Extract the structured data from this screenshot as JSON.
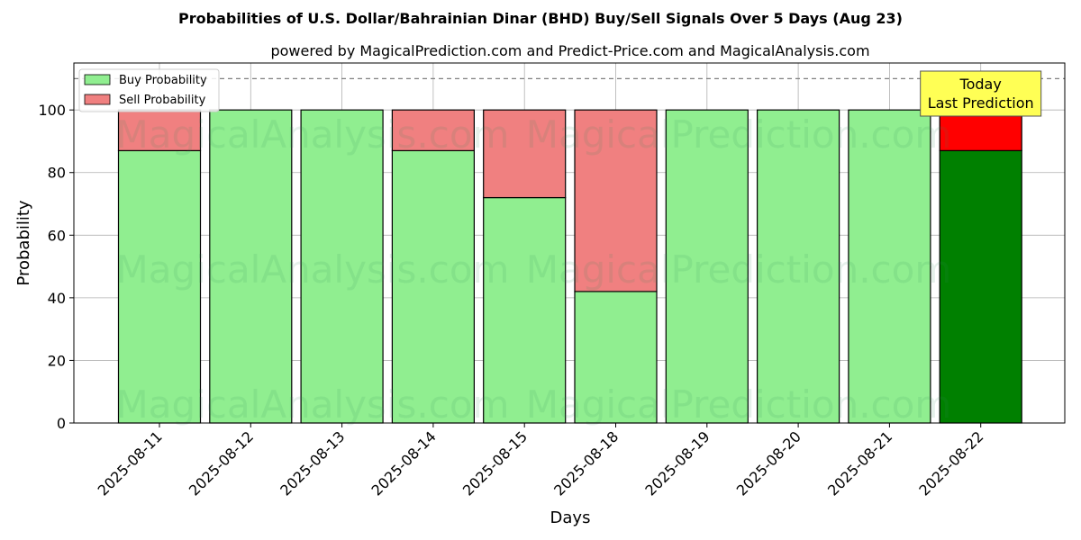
{
  "chart_data": {
    "type": "bar",
    "stacked": true,
    "title": "Probabilities of U.S. Dollar/Bahrainian Dinar (BHD) Buy/Sell Signals Over 5 Days (Aug 23)",
    "subtitle": "powered by MagicalPrediction.com and Predict-Price.com and MagicalAnalysis.com",
    "xlabel": "Days",
    "ylabel": "Probability",
    "ylim": [
      0,
      115
    ],
    "yticks": [
      0,
      20,
      40,
      60,
      80,
      100
    ],
    "grid": true,
    "legend_position": "top-left",
    "categories": [
      "2025-08-11",
      "2025-08-12",
      "2025-08-13",
      "2025-08-14",
      "2025-08-15",
      "2025-08-18",
      "2025-08-19",
      "2025-08-20",
      "2025-08-21",
      "2025-08-22"
    ],
    "series": [
      {
        "name": "Buy Probability",
        "values": [
          87,
          100,
          100,
          87,
          72,
          42,
          100,
          100,
          100,
          87
        ],
        "color": "#90ee90",
        "highlight_color": "#008000"
      },
      {
        "name": "Sell Probability",
        "values": [
          13,
          0,
          0,
          13,
          28,
          58,
          0,
          0,
          0,
          13
        ],
        "color": "#f08080",
        "highlight_color": "#ff0000"
      }
    ],
    "highlight_index": 9,
    "reference_line": {
      "y": 110,
      "style": "dashed",
      "color": "#808080"
    },
    "annotation": {
      "lines": [
        "Today",
        "Last Prediction"
      ],
      "category_index": 9,
      "background": "#ffff55"
    },
    "watermarks": [
      "MagicalAnalysis.com",
      "MagicalPrediction.com"
    ]
  }
}
